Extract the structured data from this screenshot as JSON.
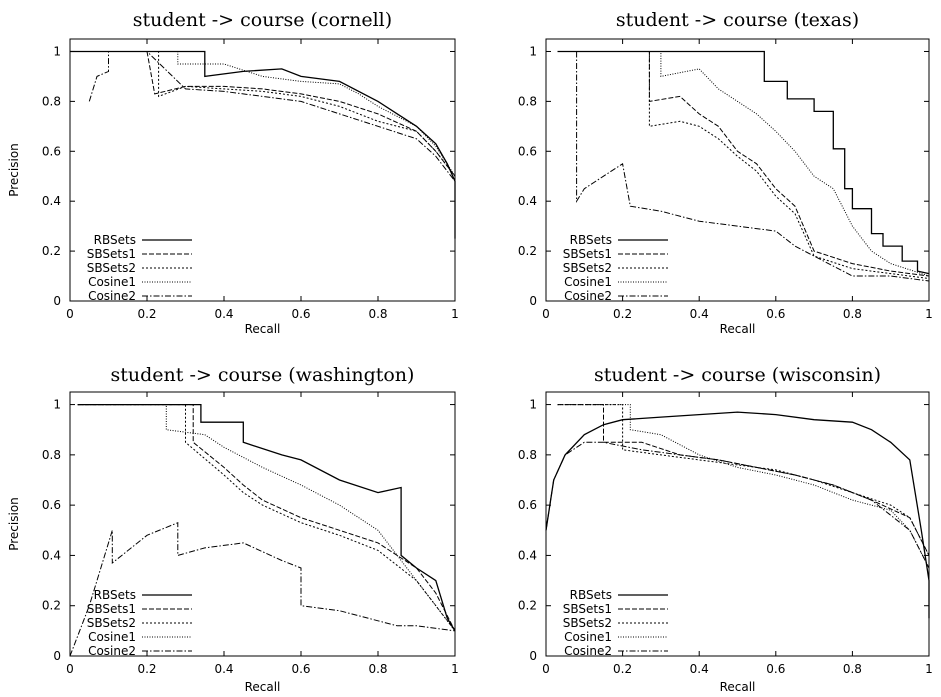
{
  "chart_data": [
    {
      "type": "line",
      "title": "student -> course (cornell)",
      "xlabel": "Recall",
      "ylabel": "Precision",
      "xlim": [
        0,
        1
      ],
      "ylim": [
        0,
        1.05
      ],
      "xticks": [
        "0",
        "0.2",
        "0.4",
        "0.6",
        "0.8",
        "1"
      ],
      "yticks": [
        "0",
        "0.2",
        "0.4",
        "0.6",
        "0.8",
        "1"
      ],
      "legend_position": "bottom-left",
      "grid": false,
      "series": [
        {
          "name": "RBSets",
          "dash": "",
          "x": [
            0,
            0.35,
            0.35,
            0.45,
            0.55,
            0.6,
            0.7,
            0.8,
            0.85,
            0.9,
            0.95,
            0.98,
            1,
            1
          ],
          "y": [
            1,
            1,
            0.9,
            0.92,
            0.93,
            0.9,
            0.88,
            0.8,
            0.75,
            0.7,
            0.63,
            0.55,
            0.48,
            0.25
          ]
        },
        {
          "name": "SBSets1",
          "dash": "5,2",
          "x": [
            0,
            0.2,
            0.22,
            0.3,
            0.4,
            0.5,
            0.6,
            0.7,
            0.8,
            0.9,
            0.95,
            1,
            1
          ],
          "y": [
            1,
            1,
            0.83,
            0.86,
            0.86,
            0.85,
            0.83,
            0.8,
            0.75,
            0.68,
            0.6,
            0.5,
            0.3
          ]
        },
        {
          "name": "SBSets2",
          "dash": "2,2",
          "x": [
            0,
            0.23,
            0.23,
            0.3,
            0.4,
            0.5,
            0.6,
            0.7,
            0.8,
            0.9,
            0.95,
            1,
            1
          ],
          "y": [
            1,
            1,
            0.82,
            0.86,
            0.85,
            0.84,
            0.82,
            0.78,
            0.72,
            0.68,
            0.6,
            0.5,
            0.3
          ]
        },
        {
          "name": "Cosine1",
          "dash": "1,1.5",
          "x": [
            0,
            0.28,
            0.28,
            0.4,
            0.5,
            0.6,
            0.7,
            0.75,
            0.8,
            0.9,
            0.95,
            1,
            1
          ],
          "y": [
            1,
            1,
            0.95,
            0.95,
            0.9,
            0.88,
            0.87,
            0.83,
            0.78,
            0.7,
            0.62,
            0.5,
            0.35
          ]
        },
        {
          "name": "Cosine2",
          "dash": "6,2,1.5,2",
          "x": [
            0.05,
            0.07,
            0.1,
            0.1,
            0.2,
            0.3,
            0.4,
            0.5,
            0.6,
            0.7,
            0.8,
            0.9,
            0.95,
            1,
            1
          ],
          "y": [
            0.8,
            0.9,
            0.92,
            1,
            1,
            0.85,
            0.84,
            0.82,
            0.8,
            0.75,
            0.7,
            0.65,
            0.58,
            0.48,
            0.3
          ]
        }
      ]
    },
    {
      "type": "line",
      "title": "student -> course (texas)",
      "xlabel": "Recall",
      "ylabel": "",
      "xlim": [
        0,
        1
      ],
      "ylim": [
        0,
        1.05
      ],
      "xticks": [
        "0",
        "0.2",
        "0.4",
        "0.6",
        "0.8",
        "1"
      ],
      "yticks": [
        "0",
        "0.2",
        "0.4",
        "0.6",
        "0.8",
        "1"
      ],
      "legend_position": "bottom-left",
      "grid": false,
      "series": [
        {
          "name": "RBSets",
          "dash": "",
          "x": [
            0.03,
            0.57,
            0.57,
            0.63,
            0.63,
            0.7,
            0.7,
            0.75,
            0.75,
            0.78,
            0.78,
            0.8,
            0.8,
            0.85,
            0.85,
            0.88,
            0.88,
            0.93,
            0.93,
            0.97,
            0.97,
            1
          ],
          "y": [
            1,
            1,
            0.88,
            0.88,
            0.81,
            0.81,
            0.76,
            0.76,
            0.61,
            0.61,
            0.45,
            0.45,
            0.37,
            0.37,
            0.27,
            0.27,
            0.22,
            0.22,
            0.16,
            0.16,
            0.12,
            0.11
          ]
        },
        {
          "name": "SBSets1",
          "dash": "5,2",
          "x": [
            0.03,
            0.27,
            0.27,
            0.35,
            0.4,
            0.45,
            0.5,
            0.55,
            0.6,
            0.65,
            0.7,
            0.8,
            0.9,
            1
          ],
          "y": [
            1,
            1,
            0.8,
            0.82,
            0.75,
            0.7,
            0.6,
            0.55,
            0.45,
            0.38,
            0.2,
            0.15,
            0.12,
            0.1
          ]
        },
        {
          "name": "SBSets2",
          "dash": "2,2",
          "x": [
            0.03,
            0.27,
            0.27,
            0.35,
            0.4,
            0.45,
            0.5,
            0.55,
            0.6,
            0.65,
            0.7,
            0.8,
            0.9,
            1
          ],
          "y": [
            1,
            1,
            0.7,
            0.72,
            0.7,
            0.65,
            0.58,
            0.52,
            0.42,
            0.35,
            0.18,
            0.13,
            0.11,
            0.09
          ]
        },
        {
          "name": "Cosine1",
          "dash": "1,1.5",
          "x": [
            0.03,
            0.3,
            0.3,
            0.4,
            0.45,
            0.5,
            0.55,
            0.6,
            0.65,
            0.7,
            0.75,
            0.8,
            0.85,
            0.9,
            1
          ],
          "y": [
            1,
            1,
            0.9,
            0.93,
            0.85,
            0.8,
            0.75,
            0.68,
            0.6,
            0.5,
            0.45,
            0.3,
            0.2,
            0.15,
            0.1
          ]
        },
        {
          "name": "Cosine2",
          "dash": "6,2,1.5,2",
          "x": [
            0.08,
            0.08,
            0.1,
            0.15,
            0.2,
            0.22,
            0.3,
            0.4,
            0.5,
            0.6,
            0.65,
            0.7,
            0.8,
            0.9,
            1
          ],
          "y": [
            1,
            0.4,
            0.45,
            0.5,
            0.55,
            0.38,
            0.36,
            0.32,
            0.3,
            0.28,
            0.22,
            0.18,
            0.1,
            0.1,
            0.08
          ]
        }
      ]
    },
    {
      "type": "line",
      "title": "student -> course (washington)",
      "xlabel": "Recall",
      "ylabel": "Precision",
      "xlim": [
        0,
        1
      ],
      "ylim": [
        0,
        1.05
      ],
      "xticks": [
        "0",
        "0.2",
        "0.4",
        "0.6",
        "0.8",
        "1"
      ],
      "yticks": [
        "0",
        "0.2",
        "0.4",
        "0.6",
        "0.8",
        "1"
      ],
      "legend_position": "bottom-left",
      "grid": false,
      "series": [
        {
          "name": "RBSets",
          "dash": "",
          "x": [
            0.02,
            0.34,
            0.34,
            0.45,
            0.45,
            0.55,
            0.6,
            0.7,
            0.8,
            0.86,
            0.86,
            0.9,
            0.95,
            0.98,
            1
          ],
          "y": [
            1,
            1,
            0.93,
            0.93,
            0.85,
            0.8,
            0.78,
            0.7,
            0.65,
            0.67,
            0.4,
            0.35,
            0.3,
            0.15,
            0.1
          ]
        },
        {
          "name": "SBSets1",
          "dash": "5,2",
          "x": [
            0.02,
            0.32,
            0.32,
            0.4,
            0.45,
            0.5,
            0.6,
            0.7,
            0.8,
            0.9,
            0.95,
            1
          ],
          "y": [
            1,
            1,
            0.85,
            0.75,
            0.68,
            0.62,
            0.55,
            0.5,
            0.45,
            0.35,
            0.25,
            0.1
          ]
        },
        {
          "name": "SBSets2",
          "dash": "2,2",
          "x": [
            0.02,
            0.3,
            0.3,
            0.4,
            0.45,
            0.5,
            0.6,
            0.7,
            0.8,
            0.9,
            0.95,
            1
          ],
          "y": [
            1,
            1,
            0.85,
            0.72,
            0.65,
            0.6,
            0.53,
            0.48,
            0.42,
            0.3,
            0.2,
            0.1
          ]
        },
        {
          "name": "Cosine1",
          "dash": "1,1.5",
          "x": [
            0.02,
            0.25,
            0.25,
            0.35,
            0.4,
            0.5,
            0.6,
            0.7,
            0.8,
            0.9,
            0.95,
            1
          ],
          "y": [
            1,
            1,
            0.9,
            0.88,
            0.83,
            0.75,
            0.68,
            0.6,
            0.5,
            0.3,
            0.2,
            0.1
          ]
        },
        {
          "name": "Cosine2",
          "dash": "6,2,1.5,2",
          "x": [
            0,
            0.05,
            0.1,
            0.11,
            0.11,
            0.2,
            0.28,
            0.28,
            0.35,
            0.45,
            0.55,
            0.6,
            0.6,
            0.7,
            0.8,
            0.85,
            0.9,
            1
          ],
          "y": [
            0,
            0.2,
            0.45,
            0.5,
            0.37,
            0.48,
            0.53,
            0.4,
            0.43,
            0.45,
            0.38,
            0.35,
            0.2,
            0.18,
            0.14,
            0.12,
            0.12,
            0.1
          ]
        }
      ]
    },
    {
      "type": "line",
      "title": "student -> course (wisconsin)",
      "xlabel": "Recall",
      "ylabel": "",
      "xlim": [
        0,
        1
      ],
      "ylim": [
        0,
        1.05
      ],
      "xticks": [
        "0",
        "0.2",
        "0.4",
        "0.6",
        "0.8",
        "1"
      ],
      "yticks": [
        "0",
        "0.2",
        "0.4",
        "0.6",
        "0.8",
        "1"
      ],
      "legend_position": "bottom-left",
      "grid": false,
      "series": [
        {
          "name": "RBSets",
          "dash": "",
          "x": [
            0,
            0.02,
            0.05,
            0.1,
            0.15,
            0.2,
            0.3,
            0.4,
            0.5,
            0.6,
            0.7,
            0.8,
            0.85,
            0.9,
            0.95,
            0.98,
            1,
            1
          ],
          "y": [
            0.5,
            0.7,
            0.8,
            0.88,
            0.92,
            0.94,
            0.95,
            0.96,
            0.97,
            0.96,
            0.94,
            0.93,
            0.9,
            0.85,
            0.78,
            0.5,
            0.3,
            0.15
          ]
        },
        {
          "name": "SBSets1",
          "dash": "5,2",
          "x": [
            0.03,
            0.15,
            0.15,
            0.25,
            0.35,
            0.45,
            0.55,
            0.65,
            0.75,
            0.85,
            0.95,
            1,
            1
          ],
          "y": [
            1,
            1,
            0.85,
            0.85,
            0.8,
            0.78,
            0.75,
            0.72,
            0.68,
            0.62,
            0.55,
            0.4,
            0.2
          ]
        },
        {
          "name": "SBSets2",
          "dash": "2,2",
          "x": [
            0.03,
            0.2,
            0.2,
            0.3,
            0.4,
            0.5,
            0.6,
            0.7,
            0.8,
            0.9,
            0.95,
            1,
            1
          ],
          "y": [
            1,
            1,
            0.82,
            0.8,
            0.78,
            0.76,
            0.74,
            0.7,
            0.65,
            0.6,
            0.55,
            0.4,
            0.2
          ]
        },
        {
          "name": "Cosine1",
          "dash": "1,1.5",
          "x": [
            0.03,
            0.22,
            0.22,
            0.3,
            0.4,
            0.5,
            0.6,
            0.7,
            0.8,
            0.9,
            0.95,
            1,
            1
          ],
          "y": [
            1,
            1,
            0.9,
            0.88,
            0.8,
            0.75,
            0.72,
            0.68,
            0.62,
            0.58,
            0.5,
            0.35,
            0.2
          ]
        },
        {
          "name": "Cosine2",
          "dash": "6,2,1.5,2",
          "x": [
            0,
            0.02,
            0.05,
            0.1,
            0.15,
            0.25,
            0.35,
            0.45,
            0.55,
            0.65,
            0.75,
            0.85,
            0.95,
            1,
            1
          ],
          "y": [
            0.5,
            0.7,
            0.8,
            0.85,
            0.85,
            0.82,
            0.8,
            0.78,
            0.75,
            0.72,
            0.68,
            0.62,
            0.5,
            0.35,
            0.2
          ]
        }
      ]
    }
  ]
}
